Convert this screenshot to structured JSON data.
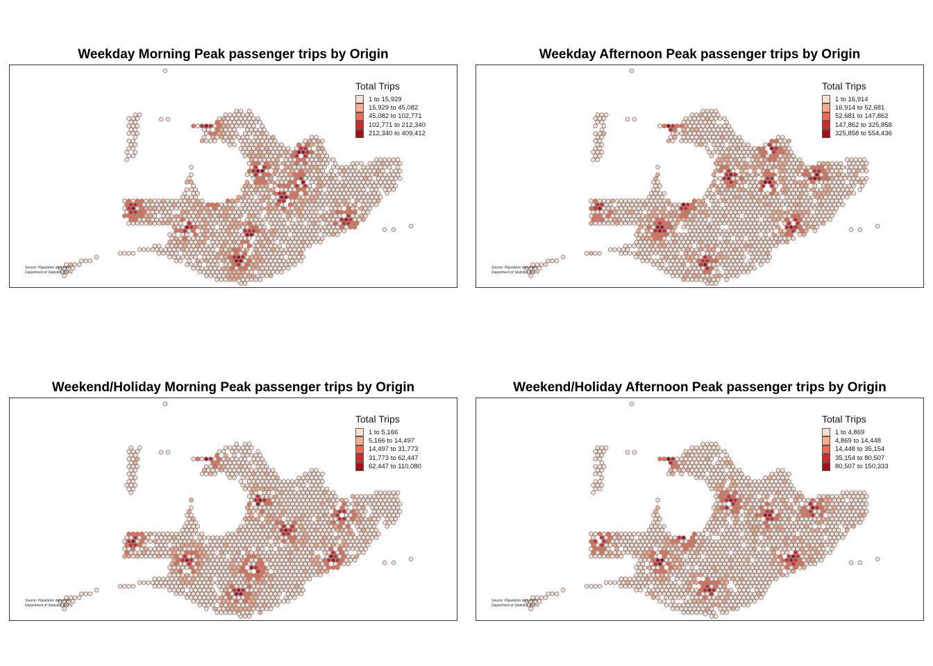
{
  "colors": {
    "classes": [
      "#fde0d2",
      "#fcab8b",
      "#f56a4a",
      "#d6262b",
      "#a30f15"
    ],
    "hex_stroke": "#8a8a8a",
    "frame": "#333333"
  },
  "source_text": {
    "line1": "Source: Population data from",
    "line2": "Department of Statistics (DOS)"
  },
  "panels": [
    {
      "title": "Weekday Morning Peak passenger trips by Origin",
      "legend_title": "Total Trips",
      "breaks": [
        "1 to 15,929",
        "15,929 to 45,082",
        "45,082 to 102,771",
        "102,771 to 212,340",
        "212,340 to 409,412"
      ],
      "variant": 0
    },
    {
      "title": "Weekday Afternoon Peak passenger trips by Origin",
      "legend_title": "Total Trips",
      "breaks": [
        "1 to 16,914",
        "16,914 to 52,681",
        "52,681 to 147,862",
        "147,862 to 325,858",
        "325,858 to 554,436"
      ],
      "variant": 1
    },
    {
      "title": "Weekend/Holiday Morning Peak passenger trips by Origin",
      "legend_title": "Total Trips",
      "breaks": [
        "1 to 5,166",
        "5,166 to 14,497",
        "14,497 to 31,773",
        "31,773 to 62,447",
        "62,447 to 110,080"
      ],
      "variant": 2
    },
    {
      "title": "Weekend/Holiday Afternoon Peak passenger trips by Origin",
      "legend_title": "Total Trips",
      "breaks": [
        "1 to 4,869",
        "4,869 to 14,448",
        "14,448 to 35,154",
        "35,154 to 80,507",
        "80,507 to 150,333"
      ],
      "variant": 3
    }
  ]
}
